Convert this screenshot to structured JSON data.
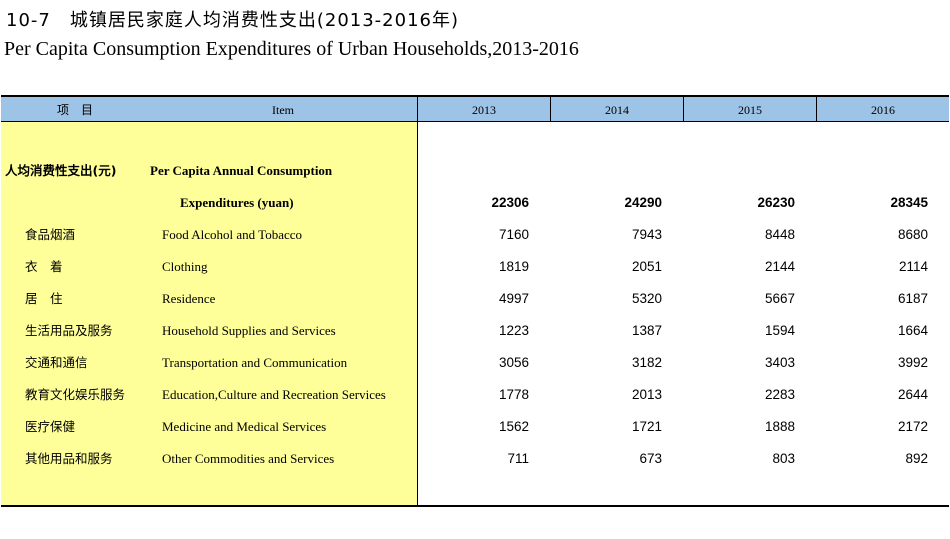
{
  "title_cn": "10-7　城镇居民家庭人均消费性支出(2013-2016年)",
  "title_en": "Per Capita Consumption Expenditures of Urban Households,2013-2016",
  "header": {
    "col_cn": "项　目",
    "col_en": "Item",
    "years": [
      "2013",
      "2014",
      "2015",
      "2016"
    ]
  },
  "total": {
    "cn": "人均消费性支出(元)",
    "en_line1": "Per Capita Annual Consumption",
    "en_line2": "Expenditures (yuan)",
    "values": [
      "22306",
      "24290",
      "26230",
      "28345"
    ]
  },
  "rows": [
    {
      "cn": "食品烟酒",
      "en": "Food Alcohol and Tobacco",
      "values": [
        "7160",
        "7943",
        "8448",
        "8680"
      ]
    },
    {
      "cn": "衣　着",
      "en": "Clothing",
      "values": [
        "1819",
        "2051",
        "2144",
        "2114"
      ]
    },
    {
      "cn": "居　住",
      "en": "Residence",
      "values": [
        "4997",
        "5320",
        "5667",
        "6187"
      ]
    },
    {
      "cn": "生活用品及服务",
      "en": "Household Supplies and Services",
      "values": [
        "1223",
        "1387",
        "1594",
        "1664"
      ]
    },
    {
      "cn": "交通和通信",
      "en": "Transportation and Communication",
      "values": [
        "3056",
        "3182",
        "3403",
        "3992"
      ]
    },
    {
      "cn": "教育文化娱乐服务",
      "en": "Education,Culture and Recreation Services",
      "values": [
        "1778",
        "2013",
        "2283",
        "2644"
      ]
    },
    {
      "cn": "医疗保健",
      "en": "Medicine and Medical Services",
      "values": [
        "1562",
        "1721",
        "1888",
        "2172"
      ]
    },
    {
      "cn": "其他用品和服务",
      "en": "Other Commodities and Services",
      "values": [
        "711",
        "673",
        "803",
        "892"
      ]
    }
  ]
}
